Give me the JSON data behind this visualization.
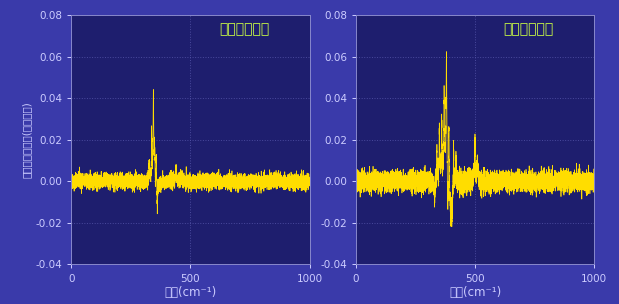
{
  "background_color": "#3a3aaa",
  "plot_bg_color": "#1e1e6e",
  "line_color": "#ffdd00",
  "grid_color": "#5555aa",
  "tick_color": "#ccccff",
  "label_color": "#ccccff",
  "title1": "セボフルラン",
  "title2": "イソフルラン",
  "title_color": "#ccff44",
  "xlabel": "波数(cm⁻¹)",
  "ylabel": "ラマン信号強度(任意単位)",
  "xlim": [
    0,
    1000
  ],
  "ylim": [
    -0.04,
    0.08
  ],
  "yticks": [
    -0.04,
    -0.02,
    0.0,
    0.02,
    0.04,
    0.06,
    0.08
  ],
  "xticks": [
    0,
    500,
    1000
  ],
  "seed": 42,
  "noise_sevo": 0.0018,
  "noise_iso": 0.0025
}
